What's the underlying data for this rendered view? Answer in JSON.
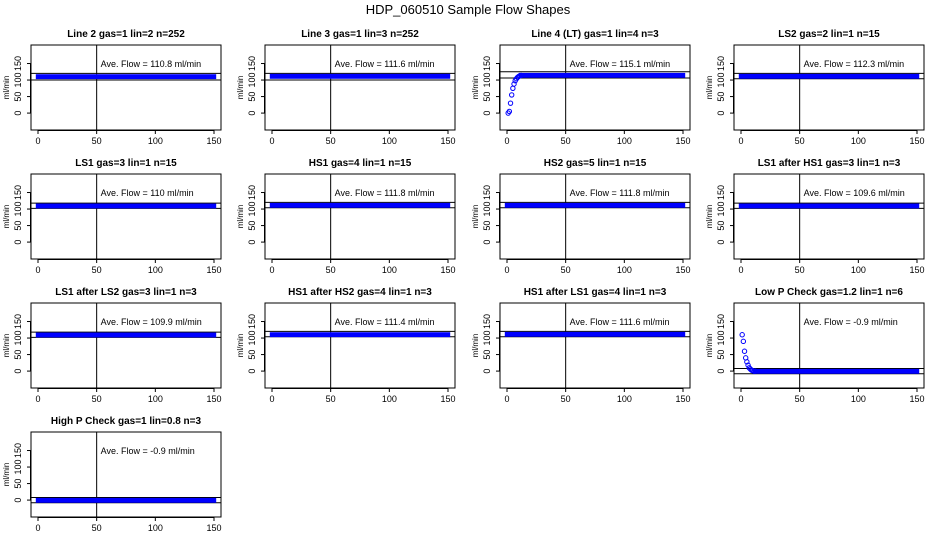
{
  "figure": {
    "title": "HDP_060510  Sample Flow Shapes"
  },
  "chart_data": [
    {
      "type": "scatter",
      "title": "Line 2 gas=1 lin=2 n=252",
      "ylabel": "ml/min",
      "annotation": "Ave. Flow =  110.8  ml/min",
      "xlim": [
        0,
        150
      ],
      "ylim": [
        -30,
        200
      ],
      "xticks": [
        0,
        50,
        100,
        150
      ],
      "yticks": [
        0,
        50,
        100,
        150
      ],
      "vline": 50,
      "hlines": [
        100,
        120
      ],
      "profile": "flat",
      "flat_value": 111,
      "x": [],
      "y": []
    },
    {
      "type": "scatter",
      "title": "Line 3 gas=1 lin=3 n=252",
      "ylabel": "ml/min",
      "annotation": "Ave. Flow =  111.6  ml/min",
      "xlim": [
        0,
        150
      ],
      "ylim": [
        -30,
        200
      ],
      "xticks": [
        0,
        50,
        100,
        150
      ],
      "yticks": [
        0,
        50,
        100,
        150
      ],
      "vline": 50,
      "hlines": [
        100,
        120
      ],
      "profile": "flat",
      "flat_value": 112,
      "x": [],
      "y": []
    },
    {
      "type": "scatter",
      "title": "Line 4 (LT) gas=1 lin=4 n=3",
      "ylabel": "ml/min",
      "annotation": "Ave. Flow =  115.1  ml/min",
      "xlim": [
        0,
        150
      ],
      "ylim": [
        -30,
        200
      ],
      "xticks": [
        0,
        50,
        100,
        150
      ],
      "yticks": [
        0,
        50,
        100,
        150
      ],
      "vline": 50,
      "hlines": [
        106,
        125
      ],
      "profile": "ramp",
      "flat_value": 115,
      "x": [
        1,
        2,
        3,
        4,
        5,
        6,
        7,
        8,
        9,
        10,
        11,
        12
      ],
      "y": [
        0,
        5,
        30,
        55,
        75,
        88,
        98,
        104,
        108,
        111,
        113,
        114
      ]
    },
    {
      "type": "scatter",
      "title": "LS2 gas=2 lin=1 n=15",
      "ylabel": "ml/min",
      "annotation": "Ave. Flow =  112.3  ml/min",
      "xlim": [
        0,
        150
      ],
      "ylim": [
        -30,
        200
      ],
      "xticks": [
        0,
        50,
        100,
        150
      ],
      "yticks": [
        0,
        50,
        100,
        150
      ],
      "vline": 50,
      "hlines": [
        104,
        120
      ],
      "profile": "flat",
      "flat_value": 112,
      "x": [],
      "y": []
    },
    {
      "type": "scatter",
      "title": "LS1 gas=3 lin=1 n=15",
      "ylabel": "ml/min",
      "annotation": "Ave. Flow =  110  ml/min",
      "xlim": [
        0,
        150
      ],
      "ylim": [
        -30,
        200
      ],
      "xticks": [
        0,
        50,
        100,
        150
      ],
      "yticks": [
        0,
        50,
        100,
        150
      ],
      "vline": 50,
      "hlines": [
        102,
        118
      ],
      "profile": "flat",
      "flat_value": 110,
      "x": [],
      "y": []
    },
    {
      "type": "scatter",
      "title": "HS1 gas=4 lin=1 n=15",
      "ylabel": "ml/min",
      "annotation": "Ave. Flow =  111.8  ml/min",
      "xlim": [
        0,
        150
      ],
      "ylim": [
        -30,
        200
      ],
      "xticks": [
        0,
        50,
        100,
        150
      ],
      "yticks": [
        0,
        50,
        100,
        150
      ],
      "vline": 50,
      "hlines": [
        104,
        120
      ],
      "profile": "flat",
      "flat_value": 112,
      "x": [],
      "y": []
    },
    {
      "type": "scatter",
      "title": "HS2 gas=5 lin=1 n=15",
      "ylabel": "ml/min",
      "annotation": "Ave. Flow =  111.8  ml/min",
      "xlim": [
        0,
        150
      ],
      "ylim": [
        -30,
        200
      ],
      "xticks": [
        0,
        50,
        100,
        150
      ],
      "yticks": [
        0,
        50,
        100,
        150
      ],
      "vline": 50,
      "hlines": [
        104,
        120
      ],
      "profile": "flat",
      "flat_value": 112,
      "x": [],
      "y": []
    },
    {
      "type": "scatter",
      "title": "LS1 after HS1 gas=3 lin=1 n=3",
      "ylabel": "ml/min",
      "annotation": "Ave. Flow =  109.6  ml/min",
      "xlim": [
        0,
        150
      ],
      "ylim": [
        -30,
        200
      ],
      "xticks": [
        0,
        50,
        100,
        150
      ],
      "yticks": [
        0,
        50,
        100,
        150
      ],
      "vline": 50,
      "hlines": [
        102,
        118
      ],
      "profile": "flat",
      "flat_value": 110,
      "x": [],
      "y": []
    },
    {
      "type": "scatter",
      "title": "LS1 after LS2 gas=3 lin=1 n=3",
      "ylabel": "ml/min",
      "annotation": "Ave. Flow =  109.9  ml/min",
      "xlim": [
        0,
        150
      ],
      "ylim": [
        -30,
        200
      ],
      "xticks": [
        0,
        50,
        100,
        150
      ],
      "yticks": [
        0,
        50,
        100,
        150
      ],
      "vline": 50,
      "hlines": [
        102,
        118
      ],
      "profile": "flat",
      "flat_value": 110,
      "x": [],
      "y": []
    },
    {
      "type": "scatter",
      "title": "HS1 after HS2 gas=4 lin=1 n=3",
      "ylabel": "ml/min",
      "annotation": "Ave. Flow =  111.4  ml/min",
      "xlim": [
        0,
        150
      ],
      "ylim": [
        -30,
        200
      ],
      "xticks": [
        0,
        50,
        100,
        150
      ],
      "yticks": [
        0,
        50,
        100,
        150
      ],
      "vline": 50,
      "hlines": [
        104,
        120
      ],
      "profile": "flat",
      "flat_value": 111,
      "x": [],
      "y": []
    },
    {
      "type": "scatter",
      "title": "HS1 after LS1 gas=4 lin=1 n=3",
      "ylabel": "ml/min",
      "annotation": "Ave. Flow =  111.6  ml/min",
      "xlim": [
        0,
        150
      ],
      "ylim": [
        -30,
        200
      ],
      "xticks": [
        0,
        50,
        100,
        150
      ],
      "yticks": [
        0,
        50,
        100,
        150
      ],
      "vline": 50,
      "hlines": [
        104,
        120
      ],
      "profile": "flat",
      "flat_value": 112,
      "x": [],
      "y": []
    },
    {
      "type": "scatter",
      "title": "Low P Check gas=1.2 lin=1 n=6",
      "ylabel": "ml/min",
      "annotation": "Ave. Flow =  -0.9  ml/min",
      "xlim": [
        0,
        150
      ],
      "ylim": [
        -30,
        200
      ],
      "xticks": [
        0,
        50,
        100,
        150
      ],
      "yticks": [
        0,
        50,
        100,
        150
      ],
      "vline": 50,
      "hlines": [
        -8,
        8
      ],
      "profile": "decay",
      "flat_value": 0,
      "x": [
        1,
        2,
        3,
        4,
        5,
        6,
        7,
        8,
        9,
        10,
        11,
        12
      ],
      "y": [
        110,
        90,
        60,
        40,
        28,
        18,
        10,
        6,
        3,
        1,
        0,
        0
      ]
    },
    {
      "type": "scatter",
      "title": "High P Check gas=1 lin=0.8 n=3",
      "ylabel": "ml/min",
      "annotation": "Ave. Flow =  -0.9  ml/min",
      "xlim": [
        0,
        150
      ],
      "ylim": [
        -30,
        200
      ],
      "xticks": [
        0,
        50,
        100,
        150
      ],
      "yticks": [
        0,
        50,
        100,
        150
      ],
      "vline": 50,
      "hlines": [
        -8,
        8
      ],
      "profile": "flat",
      "flat_value": 0,
      "x": [],
      "y": []
    }
  ],
  "colors": {
    "points": "#0000ff",
    "axes": "#000000"
  }
}
